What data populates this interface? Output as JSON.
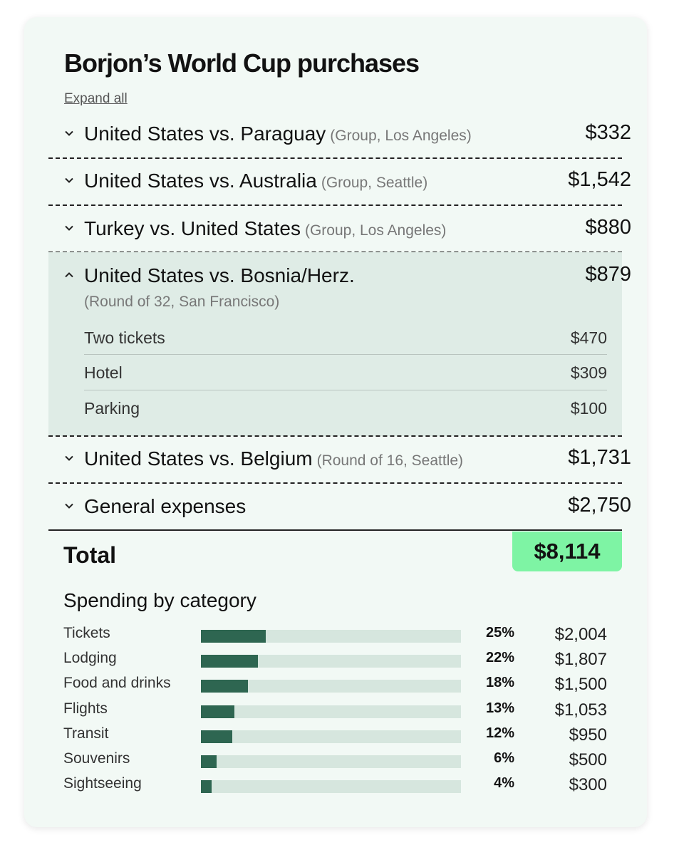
{
  "title": "Borjon’s World Cup purchases",
  "expand_all": "Expand all",
  "matches": [
    {
      "name": "United States vs. Paraguay",
      "detail": "(Group, Los Angeles)",
      "amount": "$332",
      "expanded": false
    },
    {
      "name": "United States vs. Australia",
      "detail": "(Group, Seattle)",
      "amount": "$1,542",
      "expanded": false
    },
    {
      "name": "Turkey vs. United States",
      "detail": "(Group, Los Angeles)",
      "amount": "$880",
      "expanded": false
    },
    {
      "name": "United States vs. Bosnia/Herz.",
      "detail": "(Round of 32, San Francisco)",
      "amount": "$879",
      "expanded": true,
      "items": [
        {
          "label": "Two tickets",
          "amount": "$470"
        },
        {
          "label": "Hotel",
          "amount": "$309"
        },
        {
          "label": "Parking",
          "amount": "$100"
        }
      ]
    },
    {
      "name": "United States vs. Belgium",
      "detail": "(Round of 16, Seattle)",
      "amount": "$1,731",
      "expanded": false
    },
    {
      "name": "General expenses",
      "detail": "",
      "amount": "$2,750",
      "expanded": false
    }
  ],
  "total": {
    "label": "Total",
    "amount": "$8,114",
    "highlight_color": "#7ef4a4"
  },
  "categories": {
    "title": "Spending by category",
    "bar_color": "#2e6651",
    "track_color": "#d6e6de",
    "rows": [
      {
        "label": "Tickets",
        "percent_label": "25%",
        "percent": 25,
        "amount": "$2,004"
      },
      {
        "label": "Lodging",
        "percent_label": "22%",
        "percent": 22,
        "amount": "$1,807"
      },
      {
        "label": "Food and drinks",
        "percent_label": "18%",
        "percent": 18,
        "amount": "$1,500"
      },
      {
        "label": "Flights",
        "percent_label": "13%",
        "percent": 13,
        "amount": "$1,053"
      },
      {
        "label": "Transit",
        "percent_label": "12%",
        "percent": 12,
        "amount": "$950"
      },
      {
        "label": "Souvenirs",
        "percent_label": "6%",
        "percent": 6,
        "amount": "$500"
      },
      {
        "label": "Sightseeing",
        "percent_label": "4%",
        "percent": 4,
        "amount": "$300"
      }
    ]
  },
  "icons": {
    "collapsed": "chevron-down-icon",
    "expanded": "chevron-up-icon"
  }
}
